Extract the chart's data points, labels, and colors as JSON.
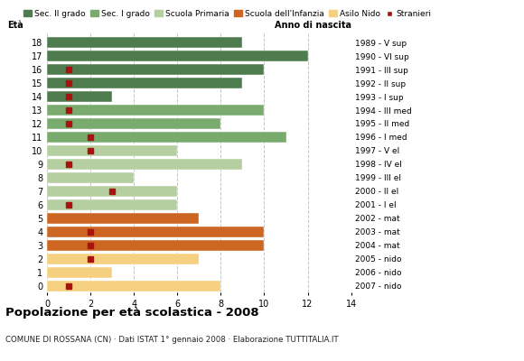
{
  "title": "Popolazione per età scolastica - 2008",
  "subtitle": "COMUNE DI ROSSANA (CN) · Dati ISTAT 1° gennaio 2008 · Elaborazione TUTTITALIA.IT",
  "ylabel": "Età",
  "xlabel_right": "Anno di nascita",
  "xlim": [
    0,
    14
  ],
  "xticks": [
    0,
    2,
    4,
    6,
    8,
    10,
    12,
    14
  ],
  "ages": [
    18,
    17,
    16,
    15,
    14,
    13,
    12,
    11,
    10,
    9,
    8,
    7,
    6,
    5,
    4,
    3,
    2,
    1,
    0
  ],
  "right_labels": [
    "1989 - V sup",
    "1990 - VI sup",
    "1991 - III sup",
    "1992 - II sup",
    "1993 - I sup",
    "1994 - III med",
    "1995 - II med",
    "1996 - I med",
    "1997 - V el",
    "1998 - IV el",
    "1999 - III el",
    "2000 - II el",
    "2001 - I el",
    "2002 - mat",
    "2003 - mat",
    "2004 - mat",
    "2005 - nido",
    "2006 - nido",
    "2007 - nido"
  ],
  "bar_values": [
    9,
    12,
    10,
    9,
    3,
    10,
    8,
    11,
    6,
    9,
    4,
    6,
    6,
    7,
    10,
    10,
    7,
    3,
    8
  ],
  "stranieri": [
    0,
    0,
    1,
    1,
    1,
    1,
    1,
    2,
    2,
    1,
    0,
    3,
    1,
    0,
    2,
    2,
    2,
    0,
    1
  ],
  "cat_colors": {
    "18": "#4e7c4e",
    "17": "#4e7c4e",
    "16": "#4e7c4e",
    "15": "#4e7c4e",
    "14": "#4e7c4e",
    "13": "#7aab6e",
    "12": "#7aab6e",
    "11": "#7aab6e",
    "10": "#b5cfa0",
    "9": "#b5cfa0",
    "8": "#b5cfa0",
    "7": "#b5cfa0",
    "6": "#b5cfa0",
    "5": "#cc6622",
    "4": "#cc6622",
    "3": "#cc6622",
    "2": "#f5d080",
    "1": "#f5d080",
    "0": "#f5d080"
  },
  "stranieri_color": "#aa1111",
  "stranieri_marker_size": 5,
  "legend_colors": [
    "#4e7c4e",
    "#7aab6e",
    "#b5cfa0",
    "#cc6622",
    "#f5d080",
    "#aa1111"
  ],
  "legend_labels": [
    "Sec. II grado",
    "Sec. I grado",
    "Scuola Primaria",
    "Scuola dell'Infanzia",
    "Asilo Nido",
    "Stranieri"
  ],
  "background_color": "#ffffff",
  "grid_color": "#aaaaaa"
}
